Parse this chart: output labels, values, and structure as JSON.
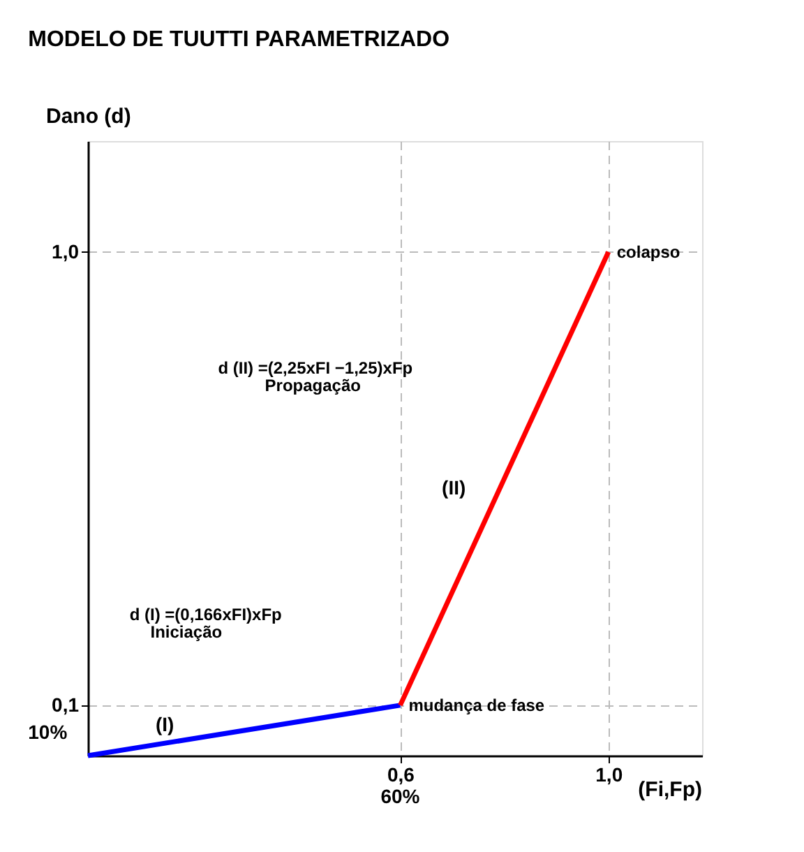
{
  "chart_data": {
    "type": "line",
    "title": "MODELO DE TUUTTI PARAMETRIZADO",
    "xlabel": "(Fi,Fp)",
    "ylabel": "Dano (d)",
    "series": [
      {
        "color": "#0000ff",
        "x": [
          0,
          0.6
        ],
        "values": [
          0,
          0.1
        ]
      },
      {
        "color": "#ff0000",
        "x": [
          0.6,
          1.0
        ],
        "values": [
          0.1,
          1.0
        ]
      }
    ],
    "xlim": [
      0,
      1.18
    ],
    "ylim": [
      0,
      1.22
    ],
    "xticks": [
      {
        "value": 0.6,
        "label": "0,6"
      },
      {
        "value": 1.0,
        "label": "1,0"
      }
    ],
    "yticks": [
      {
        "value": 0.1,
        "label": "0,1"
      },
      {
        "value": 1.0,
        "label": "1,0"
      }
    ],
    "grid": true,
    "legend": false,
    "marker": "none",
    "line_style": "solid",
    "annotations": [
      {
        "text": "colapso",
        "x": 1.0,
        "y": 1.0
      },
      {
        "text": "mudança de fase",
        "x": 0.6,
        "y": 0.1
      },
      "(I)",
      "(II)",
      "d (I) =(0,166xFI)xFp",
      "Iniciação",
      "d (II) =(2,25xFI −1,25)xFp",
      "Propagação",
      "60%",
      "10%"
    ]
  }
}
